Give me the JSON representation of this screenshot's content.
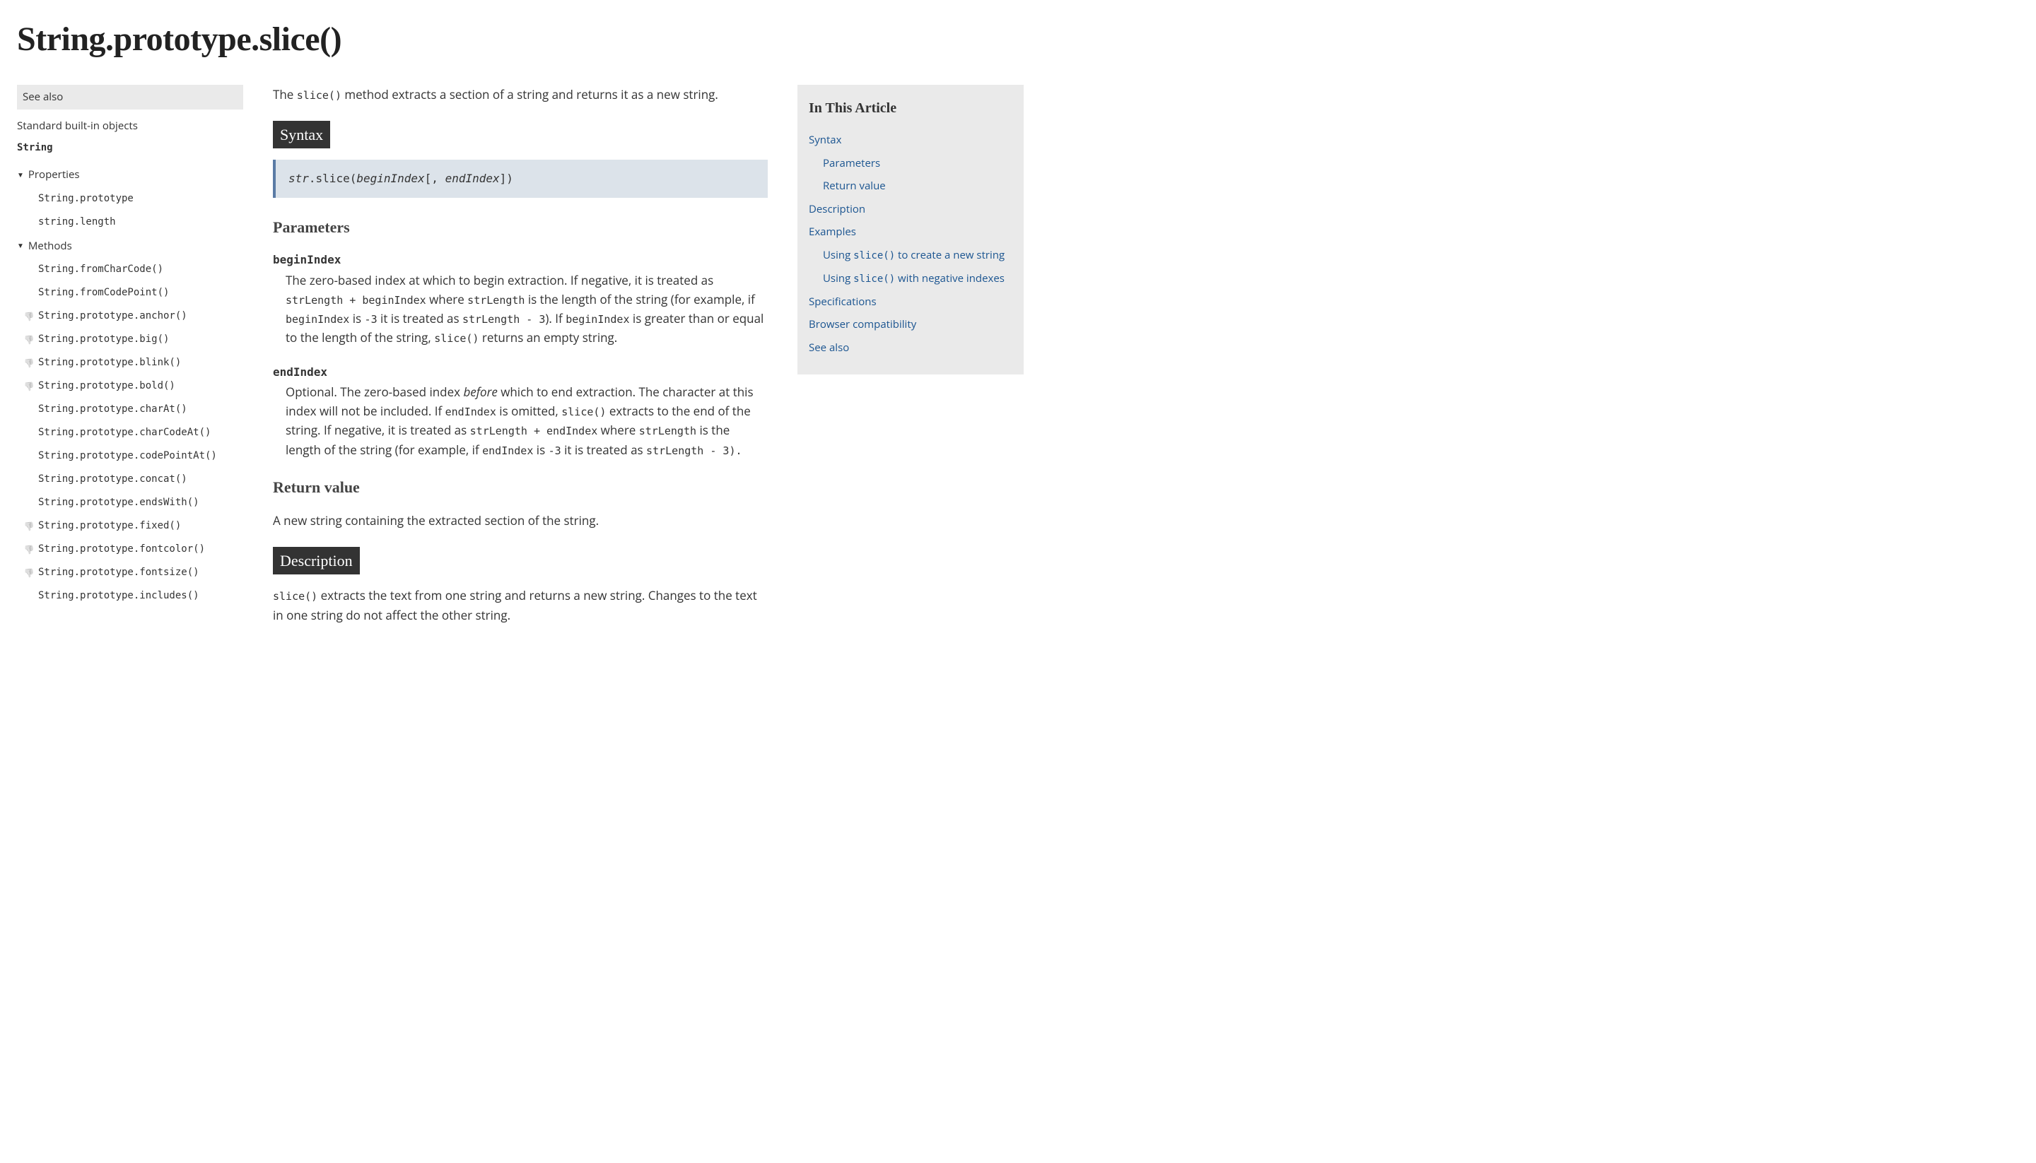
{
  "title": "String.prototype.slice()",
  "intro": {
    "pre": "The ",
    "code": "slice()",
    "post": " method extracts a section of a string and returns it as a new string."
  },
  "sidebar": {
    "see_also": "See also",
    "root": "Standard built-in objects",
    "object": "String",
    "groups": [
      {
        "label": "Properties",
        "items": [
          {
            "label": "String.prototype",
            "deprecated": false
          },
          {
            "label": "string.length",
            "deprecated": false
          }
        ]
      },
      {
        "label": "Methods",
        "items": [
          {
            "label": "String.fromCharCode()",
            "deprecated": false
          },
          {
            "label": "String.fromCodePoint()",
            "deprecated": false
          },
          {
            "label": "String.prototype.anchor()",
            "deprecated": true
          },
          {
            "label": "String.prototype.big()",
            "deprecated": true
          },
          {
            "label": "String.prototype.blink()",
            "deprecated": true
          },
          {
            "label": "String.prototype.bold()",
            "deprecated": true
          },
          {
            "label": "String.prototype.charAt()",
            "deprecated": false
          },
          {
            "label": "String.prototype.charCodeAt()",
            "deprecated": false
          },
          {
            "label": "String.prototype.codePointAt()",
            "deprecated": false
          },
          {
            "label": "String.prototype.concat()",
            "deprecated": false
          },
          {
            "label": "String.prototype.endsWith()",
            "deprecated": false
          },
          {
            "label": "String.prototype.fixed()",
            "deprecated": true
          },
          {
            "label": "String.prototype.fontcolor()",
            "deprecated": true
          },
          {
            "label": "String.prototype.fontsize()",
            "deprecated": true
          },
          {
            "label": "String.prototype.includes()",
            "deprecated": false
          }
        ]
      }
    ]
  },
  "syntax": {
    "heading": "Syntax",
    "obj": "str",
    "method": ".slice(",
    "arg1": "beginIndex",
    "sep": "[, ",
    "arg2": "endIndex",
    "close": "])"
  },
  "parameters": {
    "heading": "Parameters",
    "items": [
      {
        "name": "beginIndex",
        "parts": [
          {
            "t": "text",
            "v": "The zero-based index at which to begin extraction. If negative, it is treated as "
          },
          {
            "t": "code",
            "v": "strLength + beginIndex"
          },
          {
            "t": "text",
            "v": " where "
          },
          {
            "t": "code",
            "v": "strLength"
          },
          {
            "t": "text",
            "v": " is the length of the string (for example, if "
          },
          {
            "t": "code",
            "v": "beginIndex"
          },
          {
            "t": "text",
            "v": " is "
          },
          {
            "t": "code",
            "v": "-3"
          },
          {
            "t": "text",
            "v": " it is treated as "
          },
          {
            "t": "code",
            "v": "strLength - 3"
          },
          {
            "t": "text",
            "v": "). If "
          },
          {
            "t": "code",
            "v": "beginIndex"
          },
          {
            "t": "text",
            "v": " is greater than or equal to the length of the string, "
          },
          {
            "t": "code",
            "v": "slice()"
          },
          {
            "t": "text",
            "v": " returns an empty string."
          }
        ]
      },
      {
        "name": "endIndex",
        "parts": [
          {
            "t": "text",
            "v": "Optional. The zero-based index "
          },
          {
            "t": "em",
            "v": "before"
          },
          {
            "t": "text",
            "v": " which to end extraction. The character at this index will not be included. If "
          },
          {
            "t": "code",
            "v": "endIndex"
          },
          {
            "t": "text",
            "v": " is omitted, "
          },
          {
            "t": "code",
            "v": "slice()"
          },
          {
            "t": "text",
            "v": " extracts to the end of the string. If negative, it is treated as "
          },
          {
            "t": "code",
            "v": "strLength + endIndex"
          },
          {
            "t": "text",
            "v": " where "
          },
          {
            "t": "code",
            "v": "strLength"
          },
          {
            "t": "text",
            "v": " is the length of the string (for example, if "
          },
          {
            "t": "code",
            "v": "endIndex"
          },
          {
            "t": "text",
            "v": " is "
          },
          {
            "t": "code",
            "v": "-3"
          },
          {
            "t": "text",
            "v": " it is treated as "
          },
          {
            "t": "code",
            "v": "strLength - 3)."
          }
        ]
      }
    ]
  },
  "return_value": {
    "heading": "Return value",
    "text": "A new string containing the extracted section of the string."
  },
  "description": {
    "heading": "Description",
    "parts": [
      {
        "t": "code",
        "v": "slice()"
      },
      {
        "t": "text",
        "v": " extracts the text from one string and returns a new string. Changes to the text in one string do not affect the other string."
      }
    ]
  },
  "toc": {
    "heading": "In This Article",
    "items": [
      {
        "label": "Syntax",
        "sub": false
      },
      {
        "label": "Parameters",
        "sub": true
      },
      {
        "label": "Return value",
        "sub": true
      },
      {
        "label": "Description",
        "sub": false
      },
      {
        "label": "Examples",
        "sub": false
      },
      {
        "label_pre": "Using ",
        "code": "slice()",
        "label_post": " to create a new string",
        "sub": true
      },
      {
        "label_pre": "Using ",
        "code": "slice()",
        "label_post": " with negative indexes",
        "sub": true
      },
      {
        "label": "Specifications",
        "sub": false
      },
      {
        "label": "Browser compatibility",
        "sub": false
      },
      {
        "label": "See also",
        "sub": false
      }
    ]
  },
  "colors": {
    "syntax_bg": "#dce3ea",
    "syntax_border": "#5a7ba5",
    "section_bg": "#333333",
    "section_fg": "#ffffff",
    "toc_bg": "#eaeaea",
    "link": "#1a5490",
    "deprecated_icon": "#bbbbbb"
  }
}
